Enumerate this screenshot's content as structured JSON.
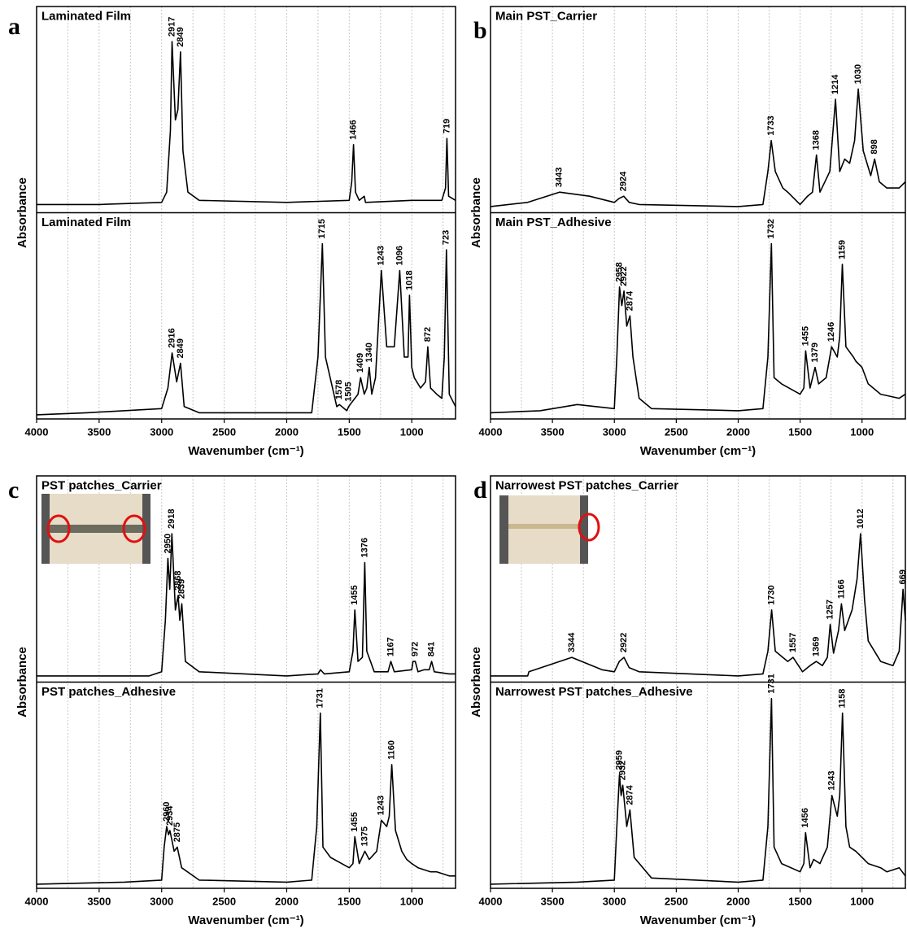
{
  "chart_data": [
    {
      "type": "line",
      "panel": "a",
      "xlabel": "Wavenumber (cm⁻¹)",
      "ylabel": "Absorbance",
      "xlim": [
        4000,
        650
      ],
      "xticks": [
        4000,
        3500,
        3000,
        2500,
        2000,
        1500,
        1000
      ],
      "grid_xticks": [
        3750,
        3500,
        3250,
        3000,
        2750,
        2500,
        2250,
        2000,
        1750,
        1500,
        1250,
        1000,
        750
      ],
      "ylim": [
        0,
        1
      ],
      "color": "#000000",
      "grid": true,
      "subplots": [
        {
          "title": "Laminated Film",
          "x": [
            4000,
            3500,
            3000,
            2960,
            2930,
            2917,
            2890,
            2870,
            2849,
            2830,
            2790,
            2700,
            2000,
            1500,
            1480,
            1466,
            1450,
            1420,
            1380,
            1370,
            1000,
            760,
            730,
            719,
            705,
            650
          ],
          "values": [
            0.04,
            0.04,
            0.05,
            0.1,
            0.4,
            0.83,
            0.45,
            0.5,
            0.78,
            0.3,
            0.1,
            0.06,
            0.05,
            0.06,
            0.15,
            0.33,
            0.1,
            0.06,
            0.08,
            0.05,
            0.06,
            0.06,
            0.12,
            0.36,
            0.08,
            0.06
          ],
          "peaks": [
            2917,
            2849,
            1466,
            719
          ]
        },
        {
          "title": "Laminated Film",
          "x": [
            4000,
            3600,
            3000,
            2950,
            2916,
            2880,
            2849,
            2820,
            2700,
            1800,
            1750,
            1715,
            1690,
            1600,
            1578,
            1520,
            1505,
            1480,
            1430,
            1409,
            1380,
            1360,
            1340,
            1320,
            1290,
            1243,
            1200,
            1140,
            1096,
            1060,
            1030,
            1018,
            1000,
            980,
            930,
            890,
            872,
            850,
            800,
            760,
            740,
            723,
            700,
            650
          ],
          "values": [
            0.02,
            0.03,
            0.05,
            0.15,
            0.32,
            0.18,
            0.27,
            0.06,
            0.03,
            0.03,
            0.3,
            0.85,
            0.3,
            0.06,
            0.07,
            0.04,
            0.06,
            0.08,
            0.12,
            0.2,
            0.12,
            0.15,
            0.25,
            0.12,
            0.2,
            0.72,
            0.35,
            0.35,
            0.72,
            0.3,
            0.3,
            0.6,
            0.25,
            0.2,
            0.15,
            0.18,
            0.35,
            0.15,
            0.12,
            0.1,
            0.3,
            0.82,
            0.12,
            0.06
          ],
          "peaks": [
            2916,
            2849,
            1715,
            1578,
            1505,
            1409,
            1340,
            1243,
            1096,
            1018,
            872,
            723
          ]
        }
      ]
    },
    {
      "type": "line",
      "panel": "b",
      "xlabel": "Wavenumber (cm⁻¹)",
      "ylabel": "Absorbance",
      "xlim": [
        4000,
        650
      ],
      "xticks": [
        4000,
        3500,
        3000,
        2500,
        2000,
        1500,
        1000
      ],
      "grid_xticks": [
        3750,
        3500,
        3250,
        3000,
        2750,
        2500,
        2250,
        2000,
        1750,
        1500,
        1250,
        1000,
        750
      ],
      "ylim": [
        0,
        1
      ],
      "color": "#000000",
      "grid": true,
      "subplots": [
        {
          "title": "Main PST_Carrier",
          "x": [
            4000,
            3700,
            3443,
            3200,
            3000,
            2960,
            2924,
            2880,
            2800,
            2000,
            1800,
            1760,
            1733,
            1700,
            1640,
            1600,
            1500,
            1440,
            1400,
            1368,
            1340,
            1260,
            1214,
            1180,
            1140,
            1100,
            1060,
            1030,
            990,
            930,
            898,
            860,
            800,
            700,
            650
          ],
          "values": [
            0.03,
            0.05,
            0.1,
            0.08,
            0.05,
            0.07,
            0.08,
            0.05,
            0.04,
            0.03,
            0.04,
            0.2,
            0.35,
            0.2,
            0.12,
            0.1,
            0.04,
            0.08,
            0.1,
            0.28,
            0.1,
            0.2,
            0.55,
            0.2,
            0.26,
            0.24,
            0.35,
            0.6,
            0.3,
            0.18,
            0.26,
            0.15,
            0.12,
            0.12,
            0.15
          ],
          "peaks": [
            3443,
            2924,
            1733,
            1368,
            1214,
            1030,
            898
          ]
        },
        {
          "title": "Main PST_Adhesive",
          "x": [
            4000,
            3600,
            3300,
            3000,
            2980,
            2958,
            2940,
            2922,
            2900,
            2874,
            2850,
            2800,
            2700,
            2000,
            1800,
            1760,
            1732,
            1710,
            1650,
            1500,
            1470,
            1455,
            1420,
            1379,
            1350,
            1290,
            1246,
            1200,
            1180,
            1159,
            1130,
            1070,
            1050,
            1000,
            950,
            850,
            700,
            650
          ],
          "values": [
            0.03,
            0.04,
            0.07,
            0.05,
            0.3,
            0.64,
            0.55,
            0.62,
            0.45,
            0.5,
            0.3,
            0.1,
            0.05,
            0.04,
            0.05,
            0.3,
            0.85,
            0.2,
            0.17,
            0.12,
            0.15,
            0.33,
            0.15,
            0.25,
            0.17,
            0.2,
            0.35,
            0.3,
            0.4,
            0.75,
            0.35,
            0.3,
            0.28,
            0.25,
            0.17,
            0.12,
            0.1,
            0.12
          ],
          "peaks": [
            2958,
            2922,
            2874,
            1732,
            1455,
            1379,
            1246,
            1159
          ]
        }
      ]
    },
    {
      "type": "line",
      "panel": "c",
      "xlabel": "Wavenumber (cm⁻¹)",
      "ylabel": "Absorbance",
      "xlim": [
        4000,
        650
      ],
      "xticks": [
        4000,
        3500,
        3000,
        2500,
        2000,
        1500,
        1000
      ],
      "grid_xticks": [
        3750,
        3500,
        3250,
        3000,
        2750,
        2500,
        2250,
        2000,
        1750,
        1500,
        1250,
        1000,
        750
      ],
      "ylim": [
        0,
        1
      ],
      "color": "#000000",
      "grid": true,
      "subplots": [
        {
          "title": "PST patches_Carrier",
          "x": [
            4000,
            3100,
            3000,
            2970,
            2950,
            2935,
            2918,
            2890,
            2868,
            2855,
            2839,
            2810,
            2700,
            2000,
            1750,
            1730,
            1700,
            1500,
            1470,
            1455,
            1430,
            1395,
            1376,
            1360,
            1300,
            1190,
            1167,
            1140,
            1000,
            990,
            972,
            950,
            900,
            860,
            841,
            820,
            700,
            650
          ],
          "values": [
            0.03,
            0.03,
            0.05,
            0.3,
            0.6,
            0.45,
            0.72,
            0.35,
            0.42,
            0.3,
            0.38,
            0.1,
            0.05,
            0.03,
            0.04,
            0.06,
            0.04,
            0.05,
            0.15,
            0.35,
            0.1,
            0.12,
            0.58,
            0.15,
            0.05,
            0.05,
            0.1,
            0.05,
            0.06,
            0.1,
            0.1,
            0.05,
            0.06,
            0.06,
            0.1,
            0.05,
            0.04,
            0.04
          ],
          "peaks": [
            2950,
            2918,
            2868,
            2839,
            1455,
            1376,
            1167,
            972,
            841
          ]
        },
        {
          "title": "PST patches_Adhesive",
          "x": [
            4000,
            3300,
            3000,
            2980,
            2960,
            2945,
            2934,
            2900,
            2875,
            2840,
            2700,
            2000,
            1800,
            1760,
            1731,
            1710,
            1650,
            1500,
            1470,
            1455,
            1420,
            1375,
            1340,
            1280,
            1243,
            1200,
            1180,
            1160,
            1130,
            1080,
            1040,
            1000,
            950,
            850,
            800,
            700,
            650
          ],
          "values": [
            0.02,
            0.03,
            0.04,
            0.2,
            0.3,
            0.26,
            0.28,
            0.18,
            0.2,
            0.1,
            0.04,
            0.03,
            0.04,
            0.3,
            0.85,
            0.2,
            0.15,
            0.1,
            0.12,
            0.25,
            0.12,
            0.18,
            0.14,
            0.18,
            0.33,
            0.3,
            0.35,
            0.6,
            0.28,
            0.18,
            0.14,
            0.12,
            0.1,
            0.08,
            0.08,
            0.06,
            0.06
          ],
          "peaks": [
            2960,
            2934,
            2875,
            1731,
            1455,
            1375,
            1243,
            1160
          ]
        }
      ]
    },
    {
      "type": "line",
      "panel": "d",
      "xlabel": "Wavenumber (cm⁻¹)",
      "ylabel": "Absorbance",
      "xlim": [
        4000,
        650
      ],
      "xticks": [
        4000,
        3500,
        3000,
        2500,
        2000,
        1500,
        1000
      ],
      "grid_xticks": [
        3750,
        3500,
        3250,
        3000,
        2750,
        2500,
        2250,
        2000,
        1750,
        1500,
        1250,
        1000,
        750
      ],
      "ylim": [
        0,
        1
      ],
      "color": "#000000",
      "grid": true,
      "subplots": [
        {
          "title": "Narrowest PST patches_Carrier",
          "x": [
            4000,
            3700,
            3690,
            3344,
            3100,
            3000,
            2960,
            2922,
            2880,
            2800,
            2000,
            1800,
            1760,
            1730,
            1700,
            1600,
            1557,
            1480,
            1420,
            1369,
            1320,
            1280,
            1257,
            1230,
            1190,
            1166,
            1140,
            1080,
            1040,
            1012,
            980,
            950,
            850,
            750,
            700,
            669,
            650
          ],
          "values": [
            0.03,
            0.03,
            0.05,
            0.12,
            0.06,
            0.05,
            0.1,
            0.12,
            0.07,
            0.05,
            0.03,
            0.04,
            0.15,
            0.35,
            0.15,
            0.1,
            0.12,
            0.05,
            0.08,
            0.1,
            0.08,
            0.12,
            0.28,
            0.14,
            0.25,
            0.38,
            0.25,
            0.35,
            0.5,
            0.72,
            0.4,
            0.2,
            0.1,
            0.08,
            0.15,
            0.45,
            0.3
          ],
          "peaks": [
            3344,
            2922,
            1730,
            1557,
            1369,
            1257,
            1166,
            1012,
            669
          ]
        },
        {
          "title": "Narrowest PST patches_Adhesive",
          "x": [
            4000,
            3300,
            3000,
            2980,
            2959,
            2945,
            2932,
            2900,
            2874,
            2840,
            2700,
            2000,
            1800,
            1760,
            1731,
            1710,
            1650,
            1500,
            1470,
            1456,
            1420,
            1390,
            1340,
            1280,
            1243,
            1200,
            1180,
            1158,
            1130,
            1100,
            1050,
            1000,
            950,
            850,
            800,
            700,
            650
          ],
          "values": [
            0.02,
            0.03,
            0.04,
            0.3,
            0.55,
            0.45,
            0.5,
            0.3,
            0.38,
            0.15,
            0.05,
            0.03,
            0.04,
            0.3,
            0.92,
            0.2,
            0.12,
            0.08,
            0.12,
            0.27,
            0.1,
            0.14,
            0.12,
            0.2,
            0.45,
            0.35,
            0.45,
            0.85,
            0.3,
            0.2,
            0.18,
            0.15,
            0.12,
            0.1,
            0.08,
            0.1,
            0.06
          ],
          "peaks": [
            2959,
            2932,
            2874,
            1731,
            1456,
            1243,
            1158
          ]
        }
      ]
    }
  ]
}
